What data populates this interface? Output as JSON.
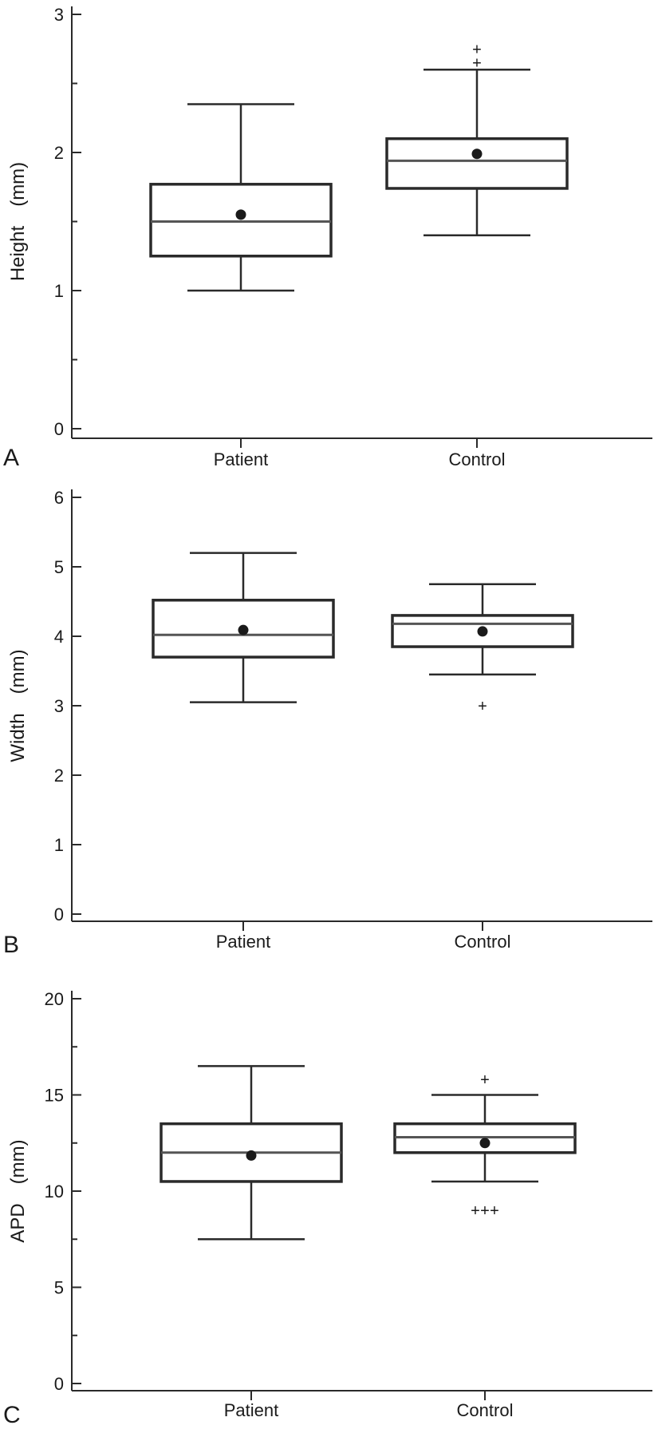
{
  "chart_data": [
    {
      "type": "box",
      "panel_label": "A",
      "ylabel": "Height",
      "yunit": "(mm)",
      "ylim": [
        0,
        3
      ],
      "yticks": [
        "0",
        "1",
        "2",
        "3"
      ],
      "yminor": [
        0.5,
        1.5,
        2.5
      ],
      "categories": [
        "Patient",
        "Control"
      ],
      "boxes": [
        {
          "whisker_low": 1.0,
          "q1": 1.25,
          "median": 1.5,
          "q3": 1.77,
          "whisker_high": 2.35,
          "mean": 1.55,
          "outliers": []
        },
        {
          "whisker_low": 1.4,
          "q1": 1.74,
          "median": 1.94,
          "q3": 2.1,
          "whisker_high": 2.6,
          "mean": 1.99,
          "outliers": [
            2.65,
            2.75
          ]
        }
      ]
    },
    {
      "type": "box",
      "panel_label": "B",
      "ylabel": "Width",
      "yunit": "(mm)",
      "ylim": [
        0,
        6
      ],
      "yticks": [
        "0",
        "1",
        "2",
        "3",
        "4",
        "5",
        "6"
      ],
      "yminor": [],
      "categories": [
        "Patient",
        "Control"
      ],
      "boxes": [
        {
          "whisker_low": 3.05,
          "q1": 3.7,
          "median": 4.02,
          "q3": 4.52,
          "whisker_high": 5.2,
          "mean": 4.09,
          "outliers": []
        },
        {
          "whisker_low": 3.45,
          "q1": 3.85,
          "median": 4.18,
          "q3": 4.3,
          "whisker_high": 4.75,
          "mean": 4.07,
          "outliers": [
            3.0
          ]
        }
      ]
    },
    {
      "type": "box",
      "panel_label": "C",
      "ylabel": "APD",
      "yunit": "(mm)",
      "ylim": [
        0,
        20
      ],
      "yticks": [
        "0",
        "5",
        "10",
        "15",
        "20"
      ],
      "yminor": [
        2.5,
        7.5,
        12.5,
        17.5
      ],
      "categories": [
        "Patient",
        "Control"
      ],
      "boxes": [
        {
          "whisker_low": 7.5,
          "q1": 10.5,
          "median": 12.0,
          "q3": 13.5,
          "whisker_high": 16.5,
          "mean": 11.85,
          "outliers": []
        },
        {
          "whisker_low": 10.5,
          "q1": 12.0,
          "median": 12.8,
          "q3": 13.5,
          "whisker_high": 15.0,
          "mean": 12.5,
          "outliers": [
            15.8,
            9.0,
            9.0,
            9.0
          ]
        }
      ]
    }
  ]
}
